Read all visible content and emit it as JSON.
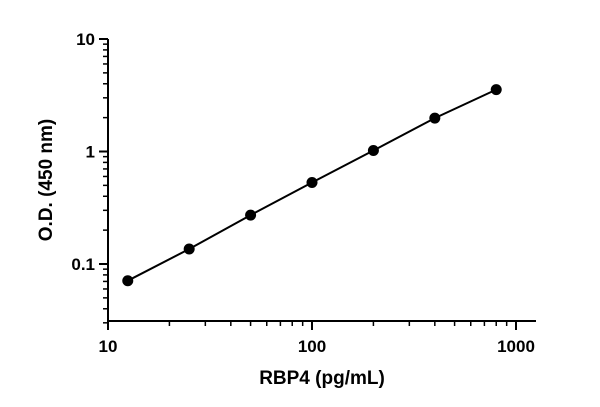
{
  "chart_data": {
    "type": "scatter",
    "title": "",
    "xlabel": "RBP4 (pg/mL)",
    "ylabel": "O.D. (450 nm)",
    "xscale": "log",
    "yscale": "log",
    "xlim": [
      10,
      1000
    ],
    "ylim": [
      0.03,
      10
    ],
    "x_ticks": [
      {
        "value": 10,
        "label": "10"
      },
      {
        "value": 100,
        "label": "100"
      },
      {
        "value": 1000,
        "label": "1000"
      }
    ],
    "y_ticks": [
      {
        "value": 0.1,
        "label": "0.1"
      },
      {
        "value": 1,
        "label": "1"
      },
      {
        "value": 10,
        "label": "10"
      }
    ],
    "grid": false,
    "legend": "none",
    "series": [
      {
        "x": [
          12.5,
          25,
          50,
          100,
          200,
          400,
          800
        ],
        "y": [
          0.071,
          0.136,
          0.272,
          0.53,
          1.02,
          1.98,
          3.55
        ]
      }
    ],
    "fit_line": true
  }
}
